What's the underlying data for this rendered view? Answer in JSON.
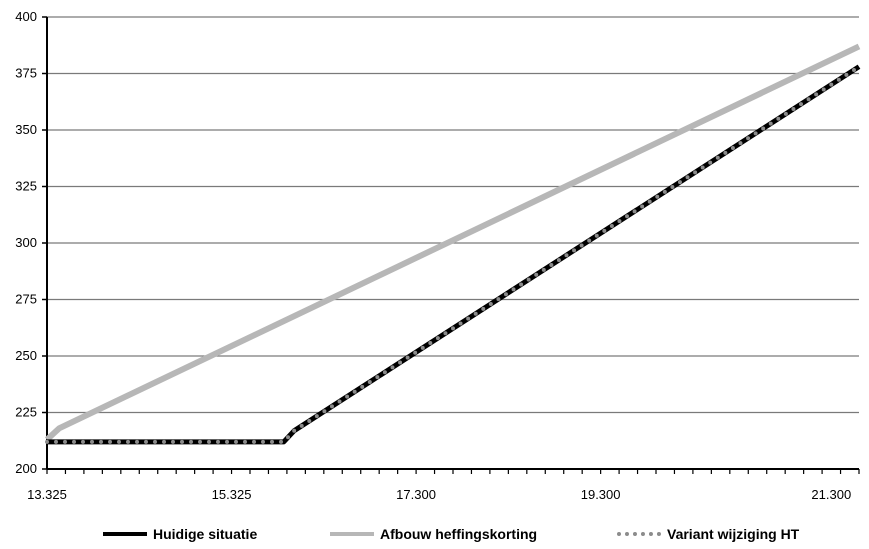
{
  "chart_data": {
    "type": "line",
    "title": "",
    "xlabel": "",
    "ylabel": "",
    "ylim": [
      200,
      400
    ],
    "y_ticks": [
      200,
      225,
      250,
      275,
      300,
      325,
      350,
      375,
      400
    ],
    "x_tick_labels": [
      "13.325",
      "15.325",
      "17.300",
      "19.300",
      "21.300"
    ],
    "grid": "horizontal",
    "legend_position": "bottom",
    "series": [
      {
        "name": "Huidige situatie",
        "color": "#000000",
        "style": "solid",
        "points": [
          [
            0,
            212
          ],
          [
            0.2915,
            212
          ],
          [
            0.3045,
            217
          ],
          [
            1,
            378
          ]
        ]
      },
      {
        "name": "Afbouw heffingskorting",
        "color": "#b7b7b7",
        "style": "solid",
        "points": [
          [
            0,
            213
          ],
          [
            0.015,
            218
          ],
          [
            1,
            387
          ]
        ]
      },
      {
        "name": "Variant wijziging HT",
        "color": "#8c8c8c",
        "style": "dotted",
        "points": [
          [
            0,
            212
          ],
          [
            0.2915,
            212
          ],
          [
            0.3045,
            217
          ],
          [
            1,
            378
          ]
        ]
      }
    ]
  }
}
